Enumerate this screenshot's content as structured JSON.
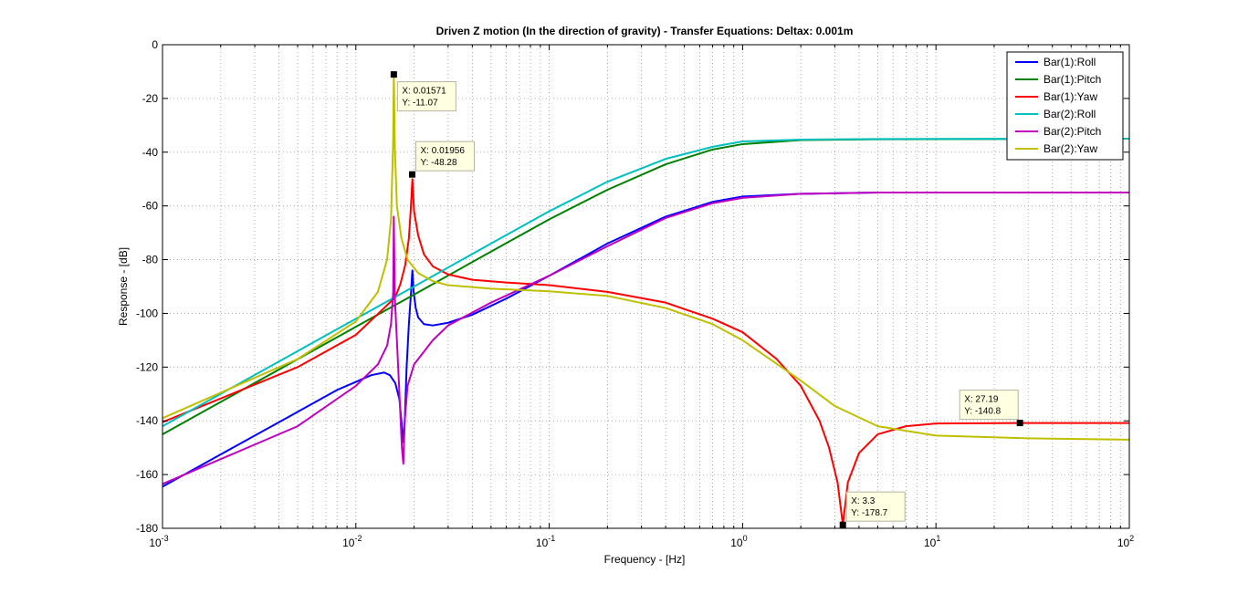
{
  "chart_data": {
    "type": "line",
    "title": "Driven Z motion (In the direction of gravity) - Transfer Equations: Deltax: 0.001m",
    "xlabel": "Frequency - [Hz]",
    "ylabel": "Response - [dB]",
    "xscale": "log",
    "xlim": [
      0.001,
      100
    ],
    "ylim": [
      -180,
      0
    ],
    "x_ticks": [
      {
        "value": 0.001,
        "base": "10",
        "exp": "-3"
      },
      {
        "value": 0.01,
        "base": "10",
        "exp": "-2"
      },
      {
        "value": 0.1,
        "base": "10",
        "exp": "-1"
      },
      {
        "value": 1,
        "base": "10",
        "exp": "0"
      },
      {
        "value": 10,
        "base": "10",
        "exp": "1"
      },
      {
        "value": 100,
        "base": "10",
        "exp": "2"
      }
    ],
    "y_ticks": [
      0,
      -20,
      -40,
      -60,
      -80,
      -100,
      -120,
      -140,
      -160,
      -180
    ],
    "grid": true,
    "legend_position": "top-right",
    "series": [
      {
        "name": "Bar(1):Roll",
        "color": "#0000ff",
        "points": [
          [
            0.001,
            -164.5
          ],
          [
            0.002,
            -152.5
          ],
          [
            0.004,
            -140.5
          ],
          [
            0.008,
            -128.5
          ],
          [
            0.01,
            -125.5
          ],
          [
            0.012,
            -123
          ],
          [
            0.014,
            -122
          ],
          [
            0.015,
            -123
          ],
          [
            0.016,
            -126
          ],
          [
            0.0168,
            -132
          ],
          [
            0.0172,
            -140
          ],
          [
            0.0176,
            -148
          ],
          [
            0.0179,
            -140
          ],
          [
            0.0183,
            -120
          ],
          [
            0.0188,
            -104
          ],
          [
            0.0193,
            -92
          ],
          [
            0.0196,
            -84
          ],
          [
            0.0199,
            -92
          ],
          [
            0.0204,
            -98
          ],
          [
            0.021,
            -101.5
          ],
          [
            0.0225,
            -104
          ],
          [
            0.025,
            -104.5
          ],
          [
            0.03,
            -103.5
          ],
          [
            0.04,
            -100.5
          ],
          [
            0.06,
            -94.5
          ],
          [
            0.1,
            -86
          ],
          [
            0.2,
            -74
          ],
          [
            0.4,
            -64
          ],
          [
            0.7,
            -58.5
          ],
          [
            1,
            -56.5
          ],
          [
            2,
            -55.5
          ],
          [
            5,
            -55
          ],
          [
            100,
            -55
          ]
        ]
      },
      {
        "name": "Bar(1):Pitch",
        "color": "#008000",
        "points": [
          [
            0.001,
            -145
          ],
          [
            0.01,
            -105
          ],
          [
            0.02,
            -93
          ],
          [
            0.05,
            -77
          ],
          [
            0.1,
            -65
          ],
          [
            0.2,
            -54
          ],
          [
            0.4,
            -44.5
          ],
          [
            0.7,
            -39
          ],
          [
            1,
            -37
          ],
          [
            2,
            -35.5
          ],
          [
            5,
            -35.2
          ],
          [
            100,
            -35
          ]
        ]
      },
      {
        "name": "Bar(1):Yaw",
        "color": "#ff0000",
        "points": [
          [
            0.001,
            -140.5
          ],
          [
            0.005,
            -120
          ],
          [
            0.01,
            -108
          ],
          [
            0.014,
            -98
          ],
          [
            0.016,
            -94
          ],
          [
            0.017,
            -89
          ],
          [
            0.018,
            -82
          ],
          [
            0.0188,
            -72
          ],
          [
            0.0192,
            -62
          ],
          [
            0.0194,
            -56
          ],
          [
            0.0196,
            -50
          ],
          [
            0.0198,
            -56
          ],
          [
            0.02,
            -62
          ],
          [
            0.021,
            -71
          ],
          [
            0.0225,
            -78
          ],
          [
            0.025,
            -82.5
          ],
          [
            0.03,
            -85.5
          ],
          [
            0.04,
            -87.5
          ],
          [
            0.06,
            -88.5
          ],
          [
            0.1,
            -89.5
          ],
          [
            0.2,
            -92
          ],
          [
            0.4,
            -96
          ],
          [
            0.7,
            -102
          ],
          [
            1,
            -107
          ],
          [
            1.5,
            -117
          ],
          [
            2,
            -127
          ],
          [
            2.5,
            -140
          ],
          [
            2.8,
            -150
          ],
          [
            3.1,
            -163
          ],
          [
            3.3,
            -178.7
          ],
          [
            3.5,
            -163
          ],
          [
            4,
            -152
          ],
          [
            5,
            -145
          ],
          [
            7,
            -142
          ],
          [
            10,
            -141
          ],
          [
            27.19,
            -140.8
          ],
          [
            100,
            -140.8
          ]
        ]
      },
      {
        "name": "Bar(2):Roll",
        "color": "#00bfbf",
        "points": [
          [
            0.001,
            -142
          ],
          [
            0.01,
            -102
          ],
          [
            0.02,
            -90
          ],
          [
            0.05,
            -74
          ],
          [
            0.1,
            -62
          ],
          [
            0.2,
            -51
          ],
          [
            0.4,
            -42.5
          ],
          [
            0.7,
            -38
          ],
          [
            1,
            -36
          ],
          [
            2,
            -35.3
          ],
          [
            5,
            -35.1
          ],
          [
            100,
            -35
          ]
        ]
      },
      {
        "name": "Bar(2):Pitch",
        "color": "#bf00bf",
        "points": [
          [
            0.001,
            -163.5
          ],
          [
            0.005,
            -142
          ],
          [
            0.01,
            -127
          ],
          [
            0.013,
            -119
          ],
          [
            0.0145,
            -112
          ],
          [
            0.0152,
            -104
          ],
          [
            0.0156,
            -92
          ],
          [
            0.01571,
            -64
          ],
          [
            0.0159,
            -94
          ],
          [
            0.0163,
            -110
          ],
          [
            0.0168,
            -130
          ],
          [
            0.0173,
            -150
          ],
          [
            0.0176,
            -156
          ],
          [
            0.0179,
            -140
          ],
          [
            0.0185,
            -127
          ],
          [
            0.02,
            -119
          ],
          [
            0.025,
            -110
          ],
          [
            0.03,
            -104.5
          ],
          [
            0.05,
            -96
          ],
          [
            0.1,
            -86
          ],
          [
            0.2,
            -75
          ],
          [
            0.4,
            -64.5
          ],
          [
            0.7,
            -59
          ],
          [
            1,
            -57
          ],
          [
            2,
            -55.5
          ],
          [
            5,
            -55
          ],
          [
            100,
            -55
          ]
        ]
      },
      {
        "name": "Bar(2):Yaw",
        "color": "#bfbf00",
        "points": [
          [
            0.001,
            -139
          ],
          [
            0.005,
            -117
          ],
          [
            0.01,
            -103
          ],
          [
            0.013,
            -92
          ],
          [
            0.0145,
            -80
          ],
          [
            0.0152,
            -65
          ],
          [
            0.0156,
            -35
          ],
          [
            0.01571,
            -11.07
          ],
          [
            0.0159,
            -38
          ],
          [
            0.0163,
            -60
          ],
          [
            0.0172,
            -72
          ],
          [
            0.0185,
            -80
          ],
          [
            0.021,
            -85
          ],
          [
            0.025,
            -88
          ],
          [
            0.03,
            -89.5
          ],
          [
            0.05,
            -90.8
          ],
          [
            0.1,
            -91.8
          ],
          [
            0.2,
            -93.5
          ],
          [
            0.4,
            -98
          ],
          [
            0.7,
            -104
          ],
          [
            1,
            -110
          ],
          [
            2,
            -125
          ],
          [
            3,
            -134.5
          ],
          [
            5,
            -142
          ],
          [
            10,
            -145.5
          ],
          [
            30,
            -146.5
          ],
          [
            100,
            -147
          ]
        ]
      }
    ],
    "datatips": [
      {
        "x": 0.01571,
        "y": -11.07,
        "x_text": "X: 0.01571",
        "y_text": "Y: -11.07",
        "placement": "below-right"
      },
      {
        "x": 0.01956,
        "y": -48.28,
        "x_text": "X: 0.01956",
        "y_text": "Y: -48.28",
        "placement": "above-right"
      },
      {
        "x": 3.3,
        "y": -178.7,
        "x_text": "X: 3.3",
        "y_text": "Y: -178.7",
        "placement": "above-right"
      },
      {
        "x": 27.19,
        "y": -140.8,
        "x_text": "X: 27.19",
        "y_text": "Y: -140.8",
        "placement": "above-left"
      }
    ]
  }
}
